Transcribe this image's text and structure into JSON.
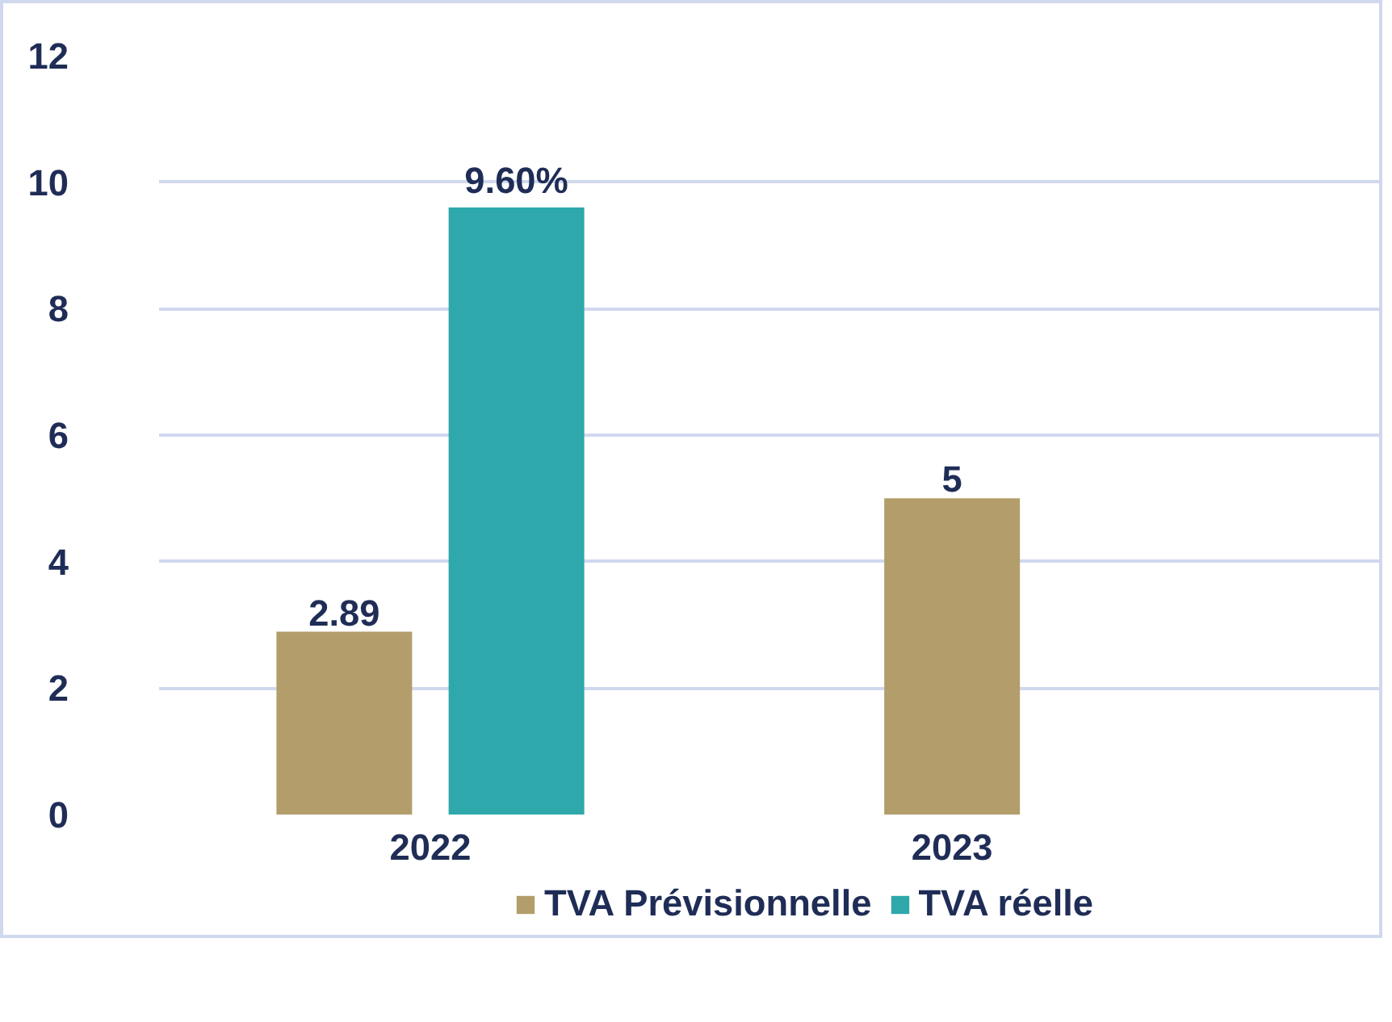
{
  "chart_data": {
    "type": "bar",
    "categories": [
      "2022",
      "2023"
    ],
    "series": [
      {
        "name": "TVA Prévisionnelle",
        "color": "#b39e6b",
        "values": [
          2.89,
          5
        ],
        "value_labels": [
          "2.89",
          "5"
        ]
      },
      {
        "name": "TVA réelle",
        "color": "#2ea8ab",
        "values": [
          9.6,
          null
        ],
        "value_labels": [
          "9.60%",
          null
        ]
      }
    ],
    "ylim": [
      0,
      12
    ],
    "yticks": [
      0,
      2,
      4,
      6,
      8,
      10,
      12
    ],
    "grid": "y",
    "legend": "bottom"
  }
}
